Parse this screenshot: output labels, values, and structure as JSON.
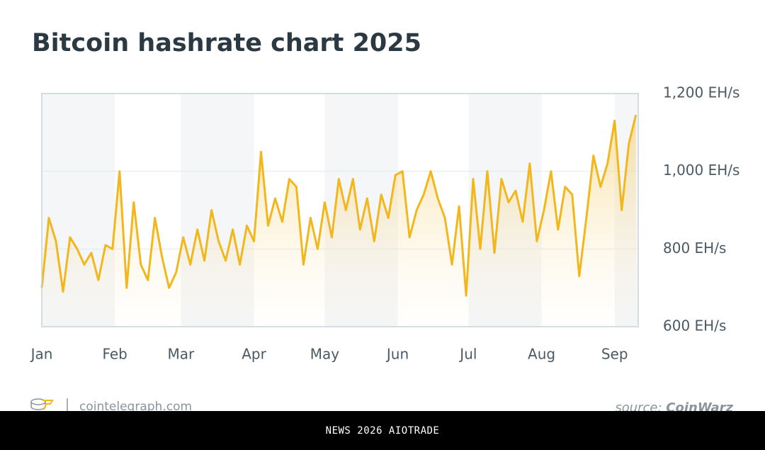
{
  "chart_data": {
    "type": "line",
    "title": "Bitcoin hashrate chart 2025",
    "x": [
      1,
      4,
      7,
      10,
      13,
      16,
      19,
      22,
      25,
      28,
      31,
      34,
      37,
      40,
      43,
      46,
      49,
      52,
      55,
      58,
      61,
      64,
      67,
      70,
      73,
      76,
      79,
      82,
      85,
      88,
      91,
      94,
      97,
      100,
      103,
      106,
      109,
      112,
      115,
      118,
      121,
      124,
      127,
      130,
      133,
      136,
      139,
      142,
      145,
      148,
      151,
      154,
      157,
      160,
      163,
      166,
      169,
      172,
      175,
      178,
      181,
      184,
      187,
      190,
      193,
      196,
      199,
      202,
      205,
      208,
      211,
      214,
      217,
      220,
      223,
      226,
      229,
      232,
      235,
      238,
      241,
      244,
      247,
      250,
      253
    ],
    "values": [
      700,
      880,
      820,
      690,
      830,
      800,
      760,
      790,
      720,
      810,
      800,
      1000,
      700,
      920,
      760,
      720,
      880,
      780,
      700,
      740,
      830,
      760,
      850,
      770,
      900,
      820,
      770,
      850,
      760,
      860,
      820,
      1050,
      860,
      930,
      870,
      980,
      960,
      760,
      880,
      800,
      920,
      830,
      980,
      900,
      980,
      850,
      930,
      820,
      940,
      880,
      990,
      1000,
      830,
      900,
      940,
      1000,
      930,
      880,
      760,
      910,
      680,
      980,
      800,
      1000,
      790,
      980,
      920,
      950,
      870,
      1020,
      820,
      900,
      1000,
      850,
      960,
      940,
      730,
      880,
      1040,
      960,
      1020,
      1130,
      900,
      1070,
      1145
    ],
    "color": "#f2b71d",
    "xlim": [
      1,
      254
    ],
    "xticks": [
      {
        "value": 1,
        "label": "Jan"
      },
      {
        "value": 32,
        "label": "Feb"
      },
      {
        "value": 60,
        "label": "Mar"
      },
      {
        "value": 91,
        "label": "Apr"
      },
      {
        "value": 121,
        "label": "May"
      },
      {
        "value": 152,
        "label": "Jun"
      },
      {
        "value": 182,
        "label": "Jul"
      },
      {
        "value": 213,
        "label": "Aug"
      },
      {
        "value": 244,
        "label": "Sep"
      }
    ],
    "ylim": [
      600,
      1200
    ],
    "yticks": [
      {
        "value": 600,
        "label": "600 EH/s"
      },
      {
        "value": 800,
        "label": "800 EH/s"
      },
      {
        "value": 1000,
        "label": "1,000 EH/s"
      },
      {
        "value": 1200,
        "label": "1,200 EH/s"
      }
    ],
    "grid": true
  },
  "footer": {
    "site": "cointelegraph.com",
    "source_label": "source:",
    "source_name": "CoinWarz"
  },
  "banner": "NEWS 2026 AIOTRADE"
}
